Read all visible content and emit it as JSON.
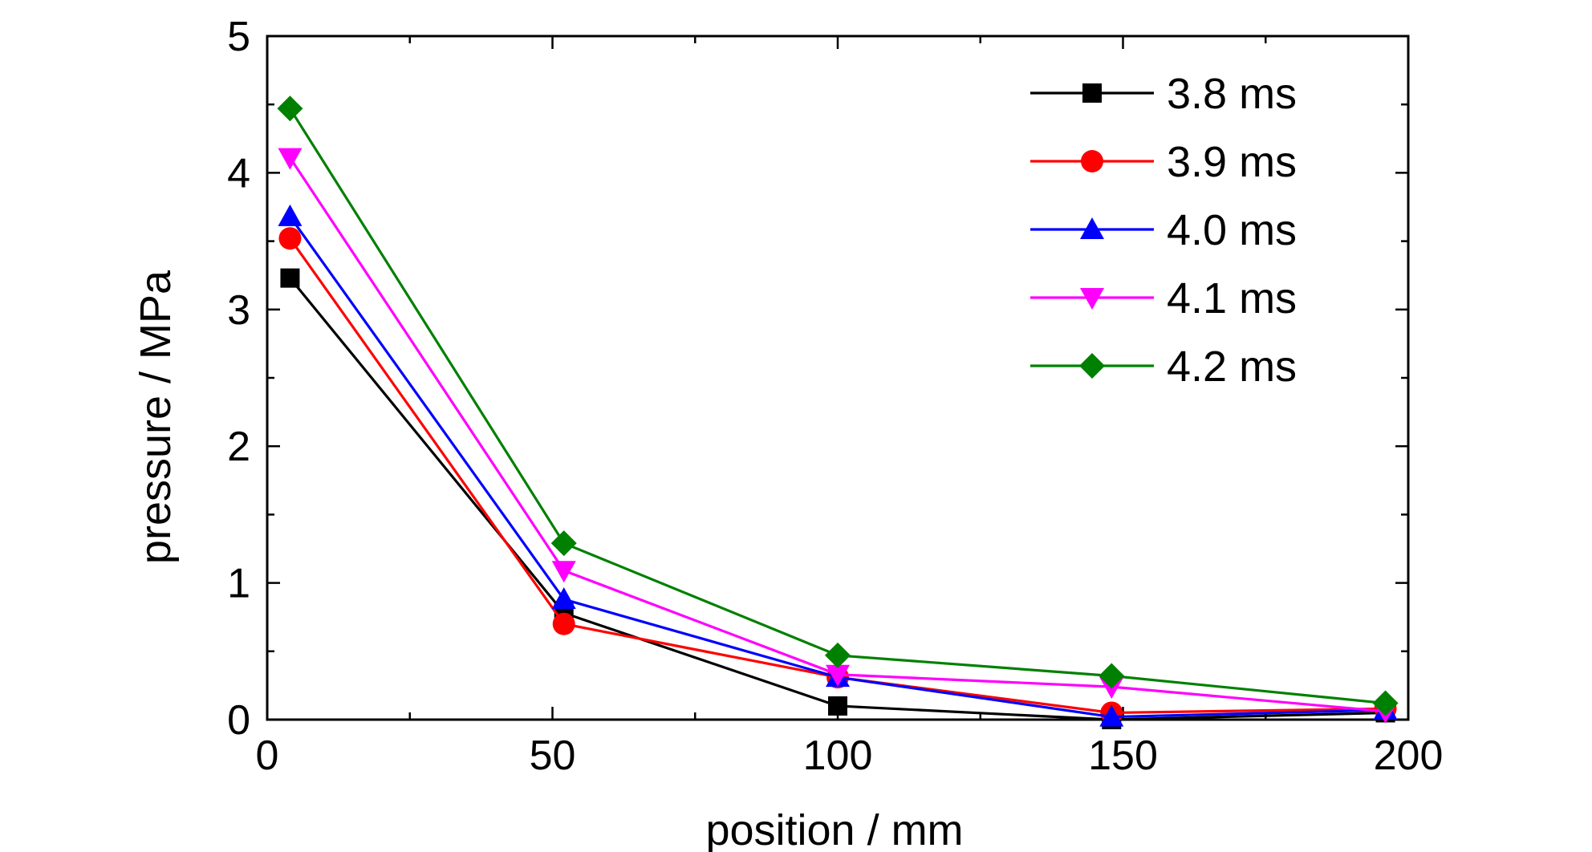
{
  "chart_data": {
    "type": "line",
    "xlabel": "position / mm",
    "ylabel": "pressure / MPa",
    "xlim": [
      0,
      200
    ],
    "ylim": [
      0,
      5
    ],
    "x_ticks": [
      0,
      50,
      100,
      150,
      200
    ],
    "y_ticks": [
      0,
      1,
      2,
      3,
      4,
      5
    ],
    "x_tick_labels": [
      "0",
      "50",
      "100",
      "150",
      "200"
    ],
    "y_tick_labels": [
      "0",
      "1",
      "2",
      "3",
      "4",
      "5"
    ],
    "grid": false,
    "legend_position": "top-right",
    "x": [
      4,
      52,
      100,
      148,
      196
    ],
    "series": [
      {
        "name": "3.8 ms",
        "color": "#000000",
        "marker": "square",
        "values": [
          3.23,
          0.78,
          0.1,
          0.0,
          0.05
        ]
      },
      {
        "name": "3.9 ms",
        "color": "#ff0000",
        "marker": "circle",
        "values": [
          3.52,
          0.7,
          0.31,
          0.05,
          0.08
        ]
      },
      {
        "name": "4.0 ms",
        "color": "#0000ff",
        "marker": "triangle-up",
        "values": [
          3.68,
          0.88,
          0.31,
          0.02,
          0.07
        ]
      },
      {
        "name": "4.1 ms",
        "color": "#ff00ff",
        "marker": "triangle-down",
        "values": [
          4.11,
          1.09,
          0.33,
          0.24,
          0.06
        ]
      },
      {
        "name": "4.2 ms",
        "color": "#008000",
        "marker": "diamond",
        "values": [
          4.47,
          1.29,
          0.47,
          0.32,
          0.12
        ]
      }
    ]
  }
}
